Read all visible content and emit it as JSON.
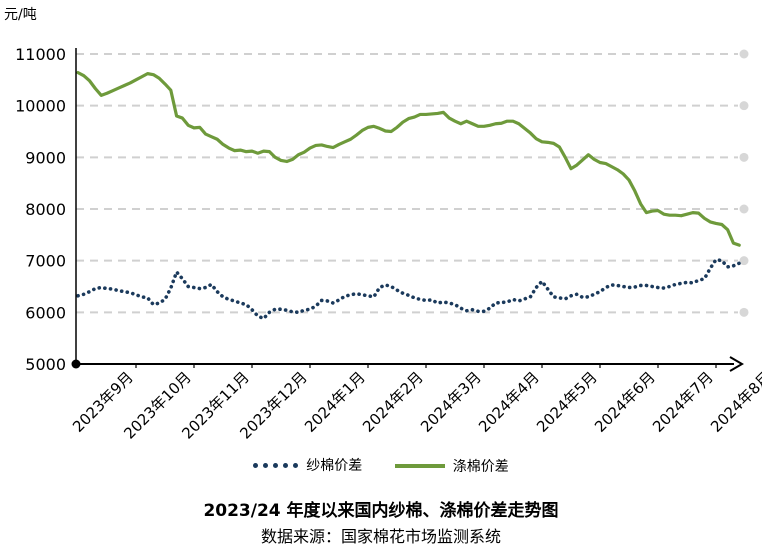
{
  "chart_data": {
    "type": "line",
    "unit_label": "元/吨",
    "title": "2023/24 年度以来国内纱棉、涤棉价差走势图",
    "source": "数据来源：国家棉花市场监测系统",
    "ylim": [
      5000,
      11000
    ],
    "y_ticks": [
      5000,
      6000,
      7000,
      8000,
      9000,
      10000,
      11000
    ],
    "grid": true,
    "legend_position": "bottom",
    "x_ticks": [
      "2023年9月",
      "2023年10月",
      "2023年11月",
      "2023年12月",
      "2024年1月",
      "2024年2月",
      "2024年3月",
      "2024年4月",
      "2024年5月",
      "2024年6月",
      "2024年7月",
      "2024年8月"
    ],
    "x": [
      0,
      0.1,
      0.2,
      0.3,
      0.4,
      0.5,
      0.6,
      0.7,
      0.8,
      0.9,
      1.0,
      1.1,
      1.2,
      1.3,
      1.4,
      1.5,
      1.6,
      1.7,
      1.8,
      1.9,
      2.0,
      2.1,
      2.2,
      2.3,
      2.4,
      2.5,
      2.6,
      2.7,
      2.8,
      2.9,
      3.0,
      3.1,
      3.2,
      3.3,
      3.4,
      3.5,
      3.6,
      3.7,
      3.8,
      3.9,
      4.0,
      4.1,
      4.2,
      4.3,
      4.4,
      4.5,
      4.6,
      4.7,
      4.8,
      4.9,
      5.0,
      5.1,
      5.2,
      5.3,
      5.4,
      5.5,
      5.6,
      5.7,
      5.8,
      5.9,
      6.0,
      6.1,
      6.2,
      6.3,
      6.4,
      6.5,
      6.6,
      6.7,
      6.8,
      6.9,
      7.0,
      7.1,
      7.2,
      7.3,
      7.4,
      7.5,
      7.6,
      7.7,
      7.8,
      7.9,
      8.0,
      8.1,
      8.2,
      8.3,
      8.4,
      8.5,
      8.6,
      8.7,
      8.8,
      8.9,
      9.0,
      9.1,
      9.2,
      9.3,
      9.4,
      9.5,
      9.6,
      9.7,
      9.8,
      9.9,
      10.0,
      10.1,
      10.2,
      10.3,
      10.4,
      10.5,
      10.6,
      10.7,
      10.8,
      10.9,
      11.0,
      11.1,
      11.2,
      11.3,
      11.4
    ],
    "series": [
      {
        "name": "纱棉价差",
        "style": "dotted",
        "color": "#1b3a5c",
        "values": [
          6320,
          6350,
          6400,
          6460,
          6480,
          6460,
          6450,
          6420,
          6400,
          6380,
          6340,
          6300,
          6280,
          6150,
          6180,
          6250,
          6470,
          6780,
          6650,
          6500,
          6480,
          6460,
          6480,
          6540,
          6400,
          6300,
          6250,
          6220,
          6180,
          6150,
          6050,
          5930,
          5880,
          6000,
          6060,
          6060,
          6040,
          6010,
          6000,
          6040,
          6060,
          6120,
          6230,
          6220,
          6180,
          6240,
          6310,
          6340,
          6360,
          6340,
          6320,
          6300,
          6480,
          6530,
          6500,
          6430,
          6370,
          6330,
          6280,
          6250,
          6230,
          6240,
          6180,
          6200,
          6180,
          6150,
          6080,
          6030,
          6050,
          6020,
          6020,
          6080,
          6180,
          6190,
          6200,
          6250,
          6220,
          6260,
          6300,
          6480,
          6600,
          6450,
          6300,
          6280,
          6260,
          6320,
          6350,
          6290,
          6300,
          6350,
          6400,
          6480,
          6530,
          6520,
          6500,
          6480,
          6490,
          6520,
          6520,
          6500,
          6480,
          6470,
          6500,
          6540,
          6560,
          6580,
          6570,
          6620,
          6650,
          6850,
          7020,
          7000,
          6880,
          6900,
          6950
        ]
      },
      {
        "name": "涤棉价差",
        "style": "solid",
        "color": "#6e9a3b",
        "values": [
          10640,
          10580,
          10480,
          10330,
          10200,
          10240,
          10290,
          10340,
          10390,
          10440,
          10500,
          10560,
          10620,
          10600,
          10530,
          10420,
          10300,
          9800,
          9760,
          9620,
          9570,
          9580,
          9450,
          9400,
          9350,
          9250,
          9180,
          9130,
          9140,
          9110,
          9120,
          9080,
          9120,
          9110,
          9000,
          8940,
          8920,
          8960,
          9050,
          9100,
          9180,
          9230,
          9240,
          9210,
          9190,
          9250,
          9300,
          9350,
          9430,
          9520,
          9580,
          9600,
          9560,
          9510,
          9500,
          9580,
          9680,
          9750,
          9780,
          9830,
          9830,
          9840,
          9850,
          9870,
          9760,
          9700,
          9650,
          9700,
          9650,
          9600,
          9600,
          9620,
          9650,
          9660,
          9700,
          9700,
          9650,
          9560,
          9470,
          9360,
          9300,
          9290,
          9270,
          9200,
          9000,
          8780,
          8850,
          8950,
          9050,
          8960,
          8900,
          8880,
          8820,
          8760,
          8680,
          8560,
          8350,
          8100,
          7930,
          7960,
          7970,
          7900,
          7880,
          7880,
          7870,
          7900,
          7930,
          7920,
          7820,
          7750,
          7720,
          7700,
          7600,
          7340,
          7300
        ]
      }
    ]
  }
}
